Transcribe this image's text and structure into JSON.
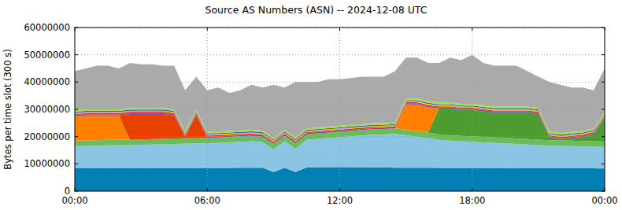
{
  "chart_data": {
    "type": "area",
    "title": "Source AS Numbers (ASN) -- 2024-12-08 UTC",
    "y_label": "Bytes per time slot (300 s)",
    "stacked": true,
    "grid": true,
    "xlim": [
      0,
      24
    ],
    "ylim": [
      0,
      60000000
    ],
    "xticks": [
      {
        "value": 0,
        "label": "00:00"
      },
      {
        "value": 6,
        "label": "06:00"
      },
      {
        "value": 12,
        "label": "12:00"
      },
      {
        "value": 18,
        "label": "18:00"
      },
      {
        "value": 24,
        "label": "00:00"
      }
    ],
    "yticks": [
      0,
      10000000,
      20000000,
      30000000,
      40000000,
      50000000,
      60000000
    ],
    "x": [
      0,
      0.5,
      1,
      1.5,
      2,
      2.5,
      3,
      3.5,
      4,
      4.5,
      5,
      5.5,
      6,
      6.5,
      7,
      7.5,
      8,
      8.5,
      9,
      9.5,
      10,
      10.5,
      11,
      11.5,
      12,
      12.5,
      13,
      13.5,
      14,
      14.5,
      15,
      15.5,
      16,
      16.5,
      17,
      17.5,
      18,
      18.5,
      19,
      19.5,
      20,
      20.5,
      21,
      21.5,
      22,
      22.5,
      23,
      23.5,
      24
    ],
    "series": [
      {
        "color": "#0080b4",
        "values": [
          8500000,
          8500000,
          8500000,
          8500000,
          8500000,
          8500000,
          8500000,
          8500000,
          8500000,
          8500000,
          8500000,
          8500000,
          8500000,
          8500000,
          8500000,
          8600000,
          8600000,
          8600000,
          7000000,
          8600000,
          7000000,
          8700000,
          8800000,
          8800000,
          8800000,
          8800000,
          8700000,
          8700000,
          8700000,
          8600000,
          8600000,
          8600000,
          8600000,
          8500000,
          8500000,
          8500000,
          8500000,
          8500000,
          8500000,
          8500000,
          8400000,
          8400000,
          8400000,
          8400000,
          8400000,
          8400000,
          8400000,
          8400000,
          8300000
        ]
      },
      {
        "color": "#8cc4e4",
        "values": [
          8000000,
          8100000,
          8200000,
          8300000,
          8300000,
          8400000,
          8500000,
          8600000,
          8700000,
          8800000,
          8900000,
          9000000,
          9100000,
          9200000,
          9400000,
          9500000,
          9700000,
          9400000,
          8300000,
          9700000,
          8500000,
          10100000,
          10400000,
          10700000,
          11000000,
          11300000,
          11700000,
          12000000,
          12100000,
          12400000,
          11900000,
          11400000,
          10900000,
          10300000,
          10000000,
          9800000,
          9600000,
          9400000,
          9200000,
          9000000,
          8900000,
          8700000,
          8500000,
          8300000,
          8200000,
          8100000,
          8000000,
          7900000,
          7900000
        ]
      },
      {
        "color": "#6cbc5c",
        "values": [
          2000000,
          2000000,
          2000000,
          2000000,
          2000000,
          2000000,
          2000000,
          2000000,
          2000000,
          2000000,
          2000000,
          2000000,
          2000000,
          2000000,
          2000000,
          2000000,
          2000000,
          2000000,
          2000000,
          2000000,
          2000000,
          2000000,
          2000000,
          2000000,
          2000000,
          2000000,
          2000000,
          2000000,
          2000000,
          2000000,
          2000000,
          2000000,
          2000000,
          2000000,
          2000000,
          2000000,
          2000000,
          2000000,
          2000000,
          2000000,
          2000000,
          2000000,
          2000000,
          2000000,
          2000000,
          2000000,
          2000000,
          2000000,
          2000000
        ]
      },
      {
        "color": "#4c9c30",
        "values": [
          0,
          0,
          0,
          0,
          0,
          0,
          0,
          0,
          0,
          0,
          0,
          0,
          0,
          0,
          0,
          0,
          0,
          0,
          0,
          0,
          0,
          0,
          0,
          0,
          0,
          0,
          0,
          0,
          0,
          0,
          0,
          0,
          0,
          9500000,
          9800000,
          9500000,
          9700000,
          9400000,
          9100000,
          9300000,
          9500000,
          9700000,
          9400000,
          1000000,
          500000,
          1000000,
          1500000,
          2500000,
          8500000
        ]
      },
      {
        "color": "#ff8000",
        "values": [
          9000000,
          9200000,
          9100000,
          9000000,
          9000000,
          0,
          0,
          0,
          0,
          0,
          0,
          0,
          0,
          0,
          0,
          0,
          0,
          0,
          0,
          0,
          0,
          0,
          0,
          0,
          0,
          0,
          0,
          0,
          0,
          0,
          9300000,
          9800000,
          9300000,
          0,
          0,
          0,
          0,
          0,
          0,
          0,
          0,
          0,
          0,
          0,
          0,
          0,
          0,
          0,
          0
        ]
      },
      {
        "color": "#e84000",
        "values": [
          0,
          0,
          0,
          0,
          0,
          9400000,
          9300000,
          9200000,
          9100000,
          8500000,
          500000,
          8300000,
          0,
          0,
          0,
          0,
          0,
          0,
          0,
          0,
          0,
          0,
          0,
          0,
          0,
          0,
          0,
          0,
          0,
          0,
          0,
          0,
          0,
          0,
          0,
          0,
          0,
          0,
          0,
          0,
          0,
          0,
          0,
          0,
          0,
          0,
          0,
          0,
          0
        ]
      },
      {
        "color": "#7050b0",
        "values": [
          400000,
          400000,
          400000,
          400000,
          400000,
          400000,
          400000,
          400000,
          400000,
          400000,
          400000,
          400000,
          400000,
          400000,
          400000,
          400000,
          400000,
          400000,
          400000,
          400000,
          400000,
          400000,
          400000,
          400000,
          400000,
          400000,
          400000,
          400000,
          400000,
          400000,
          400000,
          400000,
          400000,
          400000,
          400000,
          400000,
          400000,
          400000,
          400000,
          400000,
          400000,
          400000,
          400000,
          400000,
          400000,
          400000,
          400000,
          400000,
          400000
        ]
      },
      {
        "color": "#e03030",
        "values": [
          400000,
          400000,
          400000,
          400000,
          400000,
          400000,
          400000,
          400000,
          400000,
          400000,
          400000,
          400000,
          400000,
          400000,
          400000,
          400000,
          400000,
          400000,
          400000,
          400000,
          400000,
          400000,
          400000,
          400000,
          400000,
          400000,
          400000,
          400000,
          400000,
          400000,
          400000,
          400000,
          400000,
          400000,
          400000,
          400000,
          400000,
          400000,
          400000,
          400000,
          400000,
          400000,
          400000,
          400000,
          400000,
          400000,
          400000,
          400000,
          400000
        ]
      },
      {
        "color": "#e8c020",
        "values": [
          400000,
          400000,
          400000,
          400000,
          400000,
          400000,
          400000,
          400000,
          400000,
          400000,
          400000,
          400000,
          400000,
          400000,
          400000,
          400000,
          400000,
          400000,
          400000,
          400000,
          400000,
          400000,
          400000,
          400000,
          400000,
          400000,
          400000,
          400000,
          400000,
          400000,
          400000,
          400000,
          400000,
          400000,
          400000,
          400000,
          400000,
          400000,
          400000,
          400000,
          400000,
          400000,
          400000,
          400000,
          400000,
          400000,
          400000,
          400000,
          400000
        ]
      },
      {
        "color": "#4060c0",
        "values": [
          400000,
          400000,
          400000,
          400000,
          400000,
          400000,
          400000,
          400000,
          400000,
          400000,
          400000,
          400000,
          400000,
          400000,
          400000,
          400000,
          400000,
          400000,
          400000,
          400000,
          400000,
          400000,
          400000,
          400000,
          400000,
          400000,
          400000,
          400000,
          400000,
          400000,
          400000,
          400000,
          400000,
          400000,
          400000,
          400000,
          400000,
          400000,
          400000,
          400000,
          400000,
          400000,
          400000,
          400000,
          400000,
          400000,
          400000,
          400000,
          400000
        ]
      },
      {
        "color": "#a0e040",
        "values": [
          600000,
          600000,
          600000,
          600000,
          600000,
          600000,
          600000,
          600000,
          600000,
          600000,
          600000,
          600000,
          600000,
          600000,
          600000,
          600000,
          600000,
          600000,
          600000,
          600000,
          600000,
          600000,
          600000,
          600000,
          600000,
          600000,
          600000,
          600000,
          600000,
          600000,
          600000,
          600000,
          600000,
          600000,
          600000,
          600000,
          600000,
          600000,
          600000,
          600000,
          600000,
          600000,
          600000,
          600000,
          600000,
          600000,
          600000,
          600000,
          600000
        ]
      },
      {
        "color": "#aaaaaa",
        "values": [
          14300000,
          15000000,
          16000000,
          16000000,
          15000000,
          16500000,
          16000000,
          16000000,
          15500000,
          16000000,
          14900000,
          12000000,
          15200000,
          16100000,
          13900000,
          14700000,
          16500000,
          15800000,
          19500000,
          15500000,
          20300000,
          17000000,
          16600000,
          17300000,
          17000000,
          17200000,
          17400000,
          17100000,
          17000000,
          18800000,
          15000000,
          15000000,
          14000000,
          14500000,
          16500000,
          16000000,
          18000000,
          15500000,
          15000000,
          15000000,
          15000000,
          13000000,
          11500000,
          18100000,
          17700000,
          16300000,
          15900000,
          14000000,
          16100000
        ]
      }
    ]
  }
}
